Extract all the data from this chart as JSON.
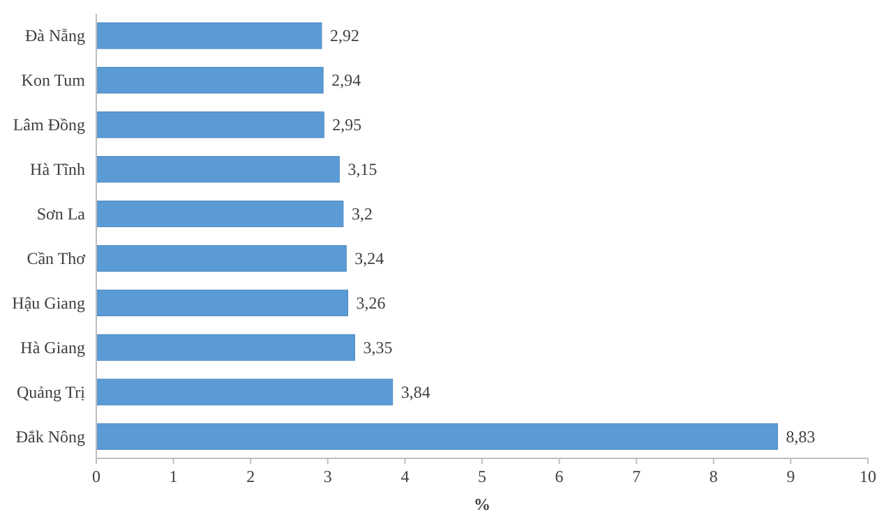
{
  "chart_data": {
    "type": "bar",
    "orientation": "horizontal",
    "xlabel": "%",
    "categories": [
      "Đà Nẵng",
      "Kon Tum",
      "Lâm Đồng",
      "Hà Tĩnh",
      "Sơn La",
      "Cần Thơ",
      "Hậu Giang",
      "Hà Giang",
      "Quảng Trị",
      "Đắk Nông"
    ],
    "values": [
      2.92,
      2.94,
      2.95,
      3.15,
      3.2,
      3.24,
      3.26,
      3.35,
      3.84,
      8.83
    ],
    "value_labels": [
      "2,92",
      "2,94",
      "2,95",
      "3,15",
      "3,2",
      "3,24",
      "3,26",
      "3,35",
      "3,84",
      "8,83"
    ],
    "color": "#5b9bd5",
    "xlim": [
      0,
      10
    ],
    "xticks": [
      0,
      1,
      2,
      3,
      4,
      5,
      6,
      7,
      8,
      9,
      10
    ]
  }
}
